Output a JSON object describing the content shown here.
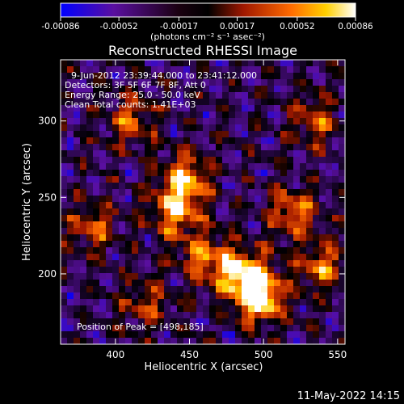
{
  "chart_data": {
    "type": "heatmap",
    "title": "Reconstructed RHESSI Image",
    "xlabel": "Heliocentric X (arcsec)",
    "ylabel": "Heliocentric Y (arcsec)",
    "xlim": [
      363,
      555
    ],
    "ylim": [
      154,
      340
    ],
    "x_ticks": [
      400,
      450,
      500,
      550
    ],
    "y_ticks": [
      200,
      250,
      300
    ],
    "colorbar": {
      "ticks": [
        "-0.00086",
        "-0.00052",
        "-0.00017",
        "0.00017",
        "0.00052",
        "0.00086"
      ],
      "tick_values": [
        -0.00086,
        -0.00052,
        -0.00017,
        0.00017,
        0.00052,
        0.00086
      ],
      "range": [
        -0.00086,
        0.00086
      ],
      "colors": [
        "#0000ff",
        "#5a0fa0",
        "#000000",
        "#a01800",
        "#ff6a00",
        "#ffd000",
        "#ffffff"
      ]
    },
    "unit_label": "(photons cm⁻² s⁻¹ asec⁻²)",
    "annotations": [
      "9-Jun-2012 23:39:44.000 to 23:41:12.000",
      "Detectors: 3F 5F 6F 7F 8F, Att 0",
      "Energy Range: 25.0 - 50.0 keV",
      "Clean     Total counts: 1.41E+03"
    ],
    "peak_label": "Position of Peak = [498,185]",
    "peak": [
      498,
      185
    ],
    "bright_regions": [
      {
        "x": 498,
        "y": 185,
        "level": 1.0
      },
      {
        "x": 485,
        "y": 200,
        "level": 0.8
      },
      {
        "x": 447,
        "y": 262,
        "level": 0.7
      },
      {
        "x": 440,
        "y": 240,
        "level": 0.65
      },
      {
        "x": 460,
        "y": 210,
        "level": 0.6
      },
      {
        "x": 520,
        "y": 240,
        "level": 0.6
      },
      {
        "x": 540,
        "y": 205,
        "level": 0.55
      },
      {
        "x": 410,
        "y": 300,
        "level": 0.5
      },
      {
        "x": 385,
        "y": 230,
        "level": 0.5
      },
      {
        "x": 420,
        "y": 180,
        "level": 0.4
      },
      {
        "x": 535,
        "y": 300,
        "level": 0.45
      }
    ]
  },
  "footer": {
    "timestamp": "11-May-2022 14:15"
  }
}
